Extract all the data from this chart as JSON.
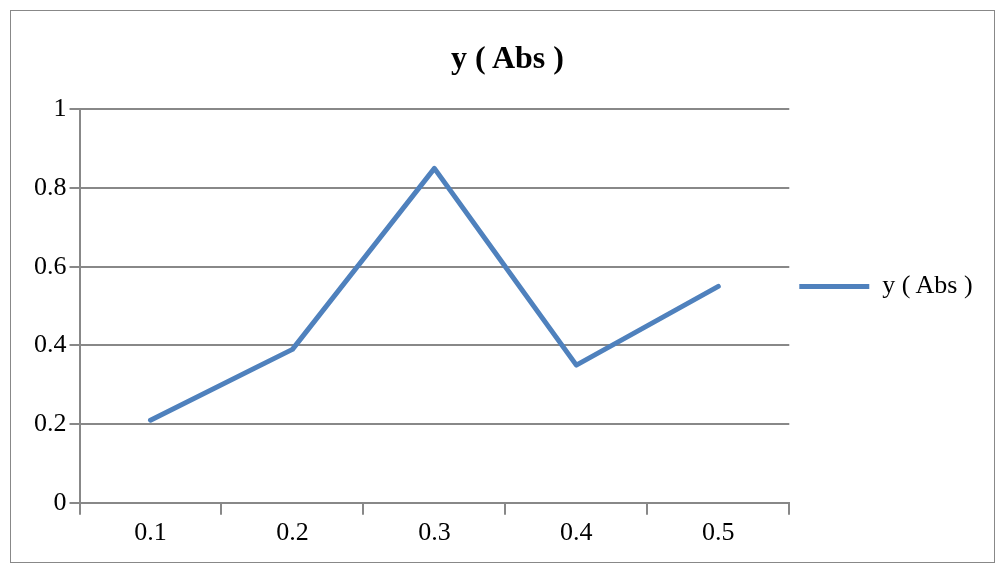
{
  "chart_data": {
    "type": "line",
    "title": "y ( Abs )",
    "categories": [
      "0.1",
      "0.2",
      "0.3",
      "0.4",
      "0.5"
    ],
    "series": [
      {
        "name": "y ( Abs )",
        "color": "#4f81bd",
        "values": [
          0.21,
          0.39,
          0.85,
          0.35,
          0.55
        ]
      }
    ],
    "ylim": [
      0,
      1
    ],
    "yticks": [
      0,
      0.2,
      0.4,
      0.6,
      0.8,
      1
    ],
    "grid": "y",
    "legend": "right",
    "marker": "none",
    "line_style": "solid"
  }
}
